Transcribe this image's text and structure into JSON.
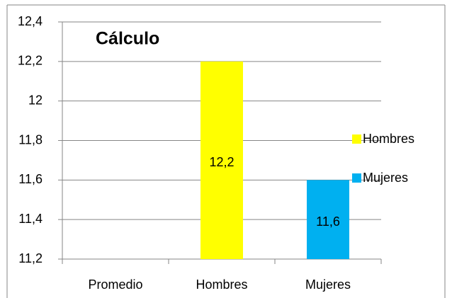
{
  "chart_data": {
    "type": "bar",
    "title": "Cálculo",
    "categories": [
      "Promedio",
      "Hombres",
      "Mujeres"
    ],
    "series": [
      {
        "name": "Hombres",
        "color": "#ffff00",
        "values": [
          null,
          12.2,
          null
        ],
        "value_labels": [
          null,
          "12,2",
          null
        ]
      },
      {
        "name": "Mujeres",
        "color": "#00b0f0",
        "values": [
          null,
          null,
          11.6
        ],
        "value_labels": [
          null,
          null,
          "11,6"
        ]
      }
    ],
    "ylim": [
      11.2,
      12.4
    ],
    "yticks": [
      {
        "value": 11.2,
        "label": "11,2"
      },
      {
        "value": 11.4,
        "label": "11,4"
      },
      {
        "value": 11.6,
        "label": "11,6"
      },
      {
        "value": 11.8,
        "label": "11,8"
      },
      12,
      {
        "value": 12.2,
        "label": "12,2"
      },
      {
        "value": 12.4,
        "label": "12,4"
      }
    ],
    "grid": true,
    "legend": "right"
  }
}
